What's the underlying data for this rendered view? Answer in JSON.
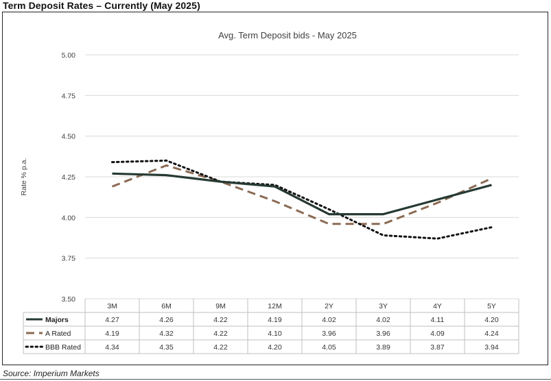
{
  "page": {
    "heading": "Term Deposit Rates – Currently (May 2025)",
    "source": "Source: Imperium Markets"
  },
  "chart_data": {
    "type": "line",
    "title": "Avg. Term Deposit bids - May 2025",
    "xlabel": "",
    "ylabel": "Rate % p.a.",
    "ylim": [
      3.5,
      5.0
    ],
    "yticks": [
      "5.00",
      "4.75",
      "4.50",
      "4.25",
      "4.00",
      "3.75",
      "3.50"
    ],
    "grid": true,
    "legend": "data-table",
    "categories": [
      "3M",
      "6M",
      "9M",
      "12M",
      "2Y",
      "3Y",
      "4Y",
      "5Y"
    ],
    "series": [
      {
        "name": "Majors",
        "style": "solid",
        "color": "#263a33",
        "values": [
          4.27,
          4.26,
          4.22,
          4.19,
          4.02,
          4.02,
          4.11,
          4.2
        ],
        "labels": [
          "4.27",
          "4.26",
          "4.22",
          "4.19",
          "4.02",
          "4.02",
          "4.11",
          "4.20"
        ]
      },
      {
        "name": "A Rated",
        "style": "dashed",
        "color": "#8b6a53",
        "values": [
          4.19,
          4.32,
          4.22,
          4.1,
          3.96,
          3.96,
          4.09,
          4.24
        ],
        "labels": [
          "4.19",
          "4.32",
          "4.22",
          "4.10",
          "3.96",
          "3.96",
          "4.09",
          "4.24"
        ]
      },
      {
        "name": "BBB Rated",
        "style": "dotted",
        "color": "#111111",
        "values": [
          4.34,
          4.35,
          4.22,
          4.2,
          4.05,
          3.89,
          3.87,
          3.94
        ],
        "labels": [
          "4.34",
          "4.35",
          "4.22",
          "4.20",
          "4.05",
          "3.89",
          "3.87",
          "3.94"
        ]
      }
    ]
  }
}
